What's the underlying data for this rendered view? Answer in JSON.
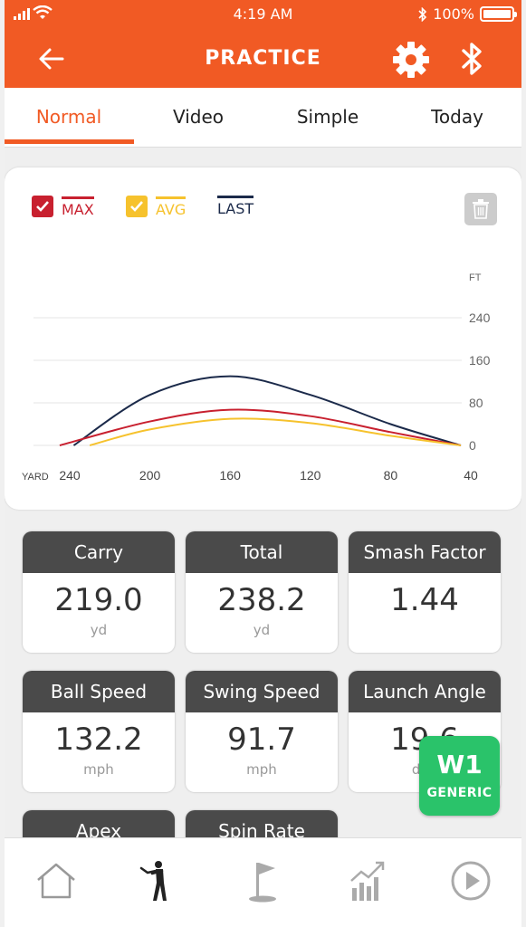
{
  "status_bar": {
    "time": "4:19 AM",
    "battery": "100%"
  },
  "nav": {
    "title": "PRACTICE"
  },
  "tabs": [
    {
      "label": "Normal",
      "active": true
    },
    {
      "label": "Video",
      "active": false
    },
    {
      "label": "Simple",
      "active": false
    },
    {
      "label": "Today",
      "active": false
    }
  ],
  "legend": [
    {
      "label": "MAX",
      "color": "#c8202f",
      "checked": true
    },
    {
      "label": "AVG",
      "color": "#f6c22d",
      "checked": true
    },
    {
      "label": "LAST",
      "color": "#1b2a4a",
      "checked": false
    }
  ],
  "chart_data": {
    "type": "line",
    "xlabel": "YARD",
    "ylabel": "FT",
    "x_ticks": [
      "240",
      "200",
      "160",
      "120",
      "80",
      "40"
    ],
    "y_ticks": [
      "240",
      "160",
      "80",
      "0"
    ],
    "xlim": [
      240,
      40
    ],
    "ylim": [
      0,
      240
    ],
    "grid": true,
    "series": [
      {
        "name": "LAST",
        "color": "#1b2a4a",
        "x": [
          238,
          200,
          160,
          120,
          80,
          45
        ],
        "y": [
          0,
          95,
          130,
          95,
          40,
          0
        ]
      },
      {
        "name": "MAX",
        "color": "#c8202f",
        "x": [
          245,
          200,
          160,
          120,
          80,
          45
        ],
        "y": [
          0,
          45,
          67,
          55,
          25,
          0
        ]
      },
      {
        "name": "AVG",
        "color": "#f6c22d",
        "x": [
          230,
          200,
          160,
          120,
          80,
          45
        ],
        "y": [
          0,
          30,
          50,
          42,
          18,
          0
        ]
      }
    ]
  },
  "stats": [
    {
      "label": "Carry",
      "value": "219.0",
      "unit": "yd"
    },
    {
      "label": "Total",
      "value": "238.2",
      "unit": "yd"
    },
    {
      "label": "Smash Factor",
      "value": "1.44",
      "unit": ""
    },
    {
      "label": "Ball Speed",
      "value": "132.2",
      "unit": "mph"
    },
    {
      "label": "Swing Speed",
      "value": "91.7",
      "unit": "mph"
    },
    {
      "label": "Launch Angle",
      "value": "19.6",
      "unit": "deg"
    },
    {
      "label": "Apex",
      "value": "",
      "unit": ""
    },
    {
      "label": "Spin Rate",
      "value": "",
      "unit": ""
    }
  ],
  "club_badge": {
    "code": "W1",
    "name": "GENERIC",
    "color": "#2ac36a"
  },
  "bottom_nav": [
    {
      "icon": "home-icon",
      "active": false
    },
    {
      "icon": "golfer-icon",
      "active": true
    },
    {
      "icon": "golf-flag-icon",
      "active": false
    },
    {
      "icon": "stats-chart-icon",
      "active": false
    },
    {
      "icon": "play-icon",
      "active": false
    }
  ],
  "colors": {
    "accent": "#f15a24",
    "tile_header": "#4a4a4a"
  }
}
